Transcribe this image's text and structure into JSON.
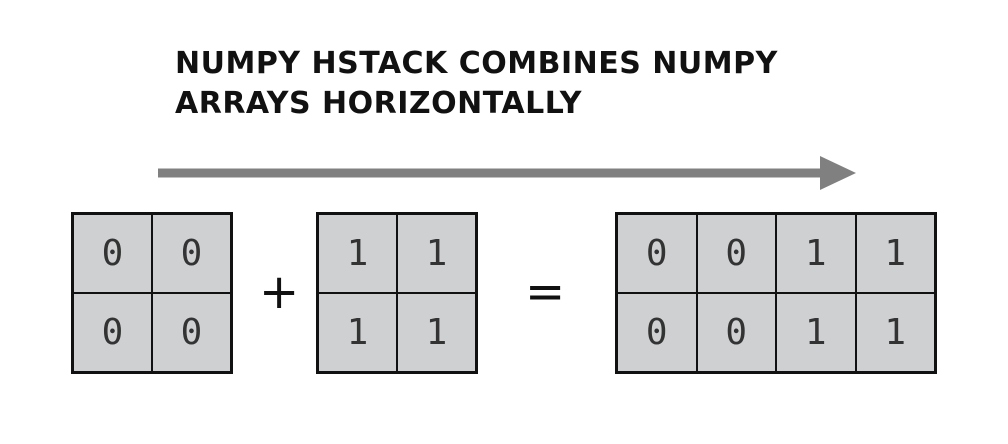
{
  "title": {
    "line1": "NUMPY HSTACK COMBINES NUMPY",
    "line2": "ARRAYS HORIZONTALLY"
  },
  "arrow": {
    "icon": "right-arrow-icon",
    "color": "#808080"
  },
  "operators": {
    "plus": "+",
    "equals": "="
  },
  "arrays": {
    "a": {
      "cells": [
        "0",
        "0",
        "0",
        "0"
      ]
    },
    "b": {
      "cells": [
        "1",
        "1",
        "1",
        "1"
      ]
    },
    "result": {
      "cells": [
        "0",
        "0",
        "1",
        "1",
        "0",
        "0",
        "1",
        "1"
      ]
    }
  },
  "colors": {
    "cell_fill": "#cfd0d2",
    "border": "#111111",
    "text": "#333333"
  }
}
